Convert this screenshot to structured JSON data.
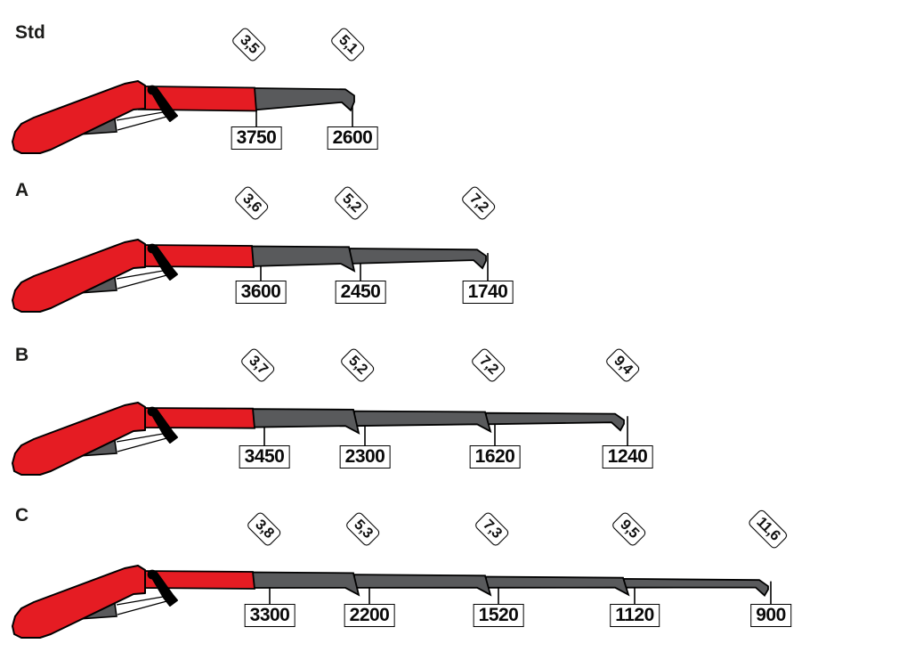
{
  "diagram": {
    "description": "Crane boom extension load diagram with four configurations",
    "colors": {
      "boom_red": "#e51c23",
      "boom_gray": "#595a5c",
      "outline": "#000000",
      "background": "#ffffff",
      "text": "#1d1d1b"
    },
    "rows": [
      {
        "label": "Std",
        "stages": [
          {
            "reach": "3,5",
            "load": "3750"
          },
          {
            "reach": "5,1",
            "load": "2600"
          }
        ]
      },
      {
        "label": "A",
        "stages": [
          {
            "reach": "3,6",
            "load": "3600"
          },
          {
            "reach": "5,2",
            "load": "2450"
          },
          {
            "reach": "7,2",
            "load": "1740"
          }
        ]
      },
      {
        "label": "B",
        "stages": [
          {
            "reach": "3,7",
            "load": "3450"
          },
          {
            "reach": "5,2",
            "load": "2300"
          },
          {
            "reach": "7,2",
            "load": "1620"
          },
          {
            "reach": "9,4",
            "load": "1240"
          }
        ]
      },
      {
        "label": "C",
        "stages": [
          {
            "reach": "3,8",
            "load": "3300"
          },
          {
            "reach": "5,3",
            "load": "2200"
          },
          {
            "reach": "7,3",
            "load": "1520"
          },
          {
            "reach": "9,5",
            "load": "1120"
          },
          {
            "reach": "11,6",
            "load": "900"
          }
        ]
      }
    ]
  }
}
